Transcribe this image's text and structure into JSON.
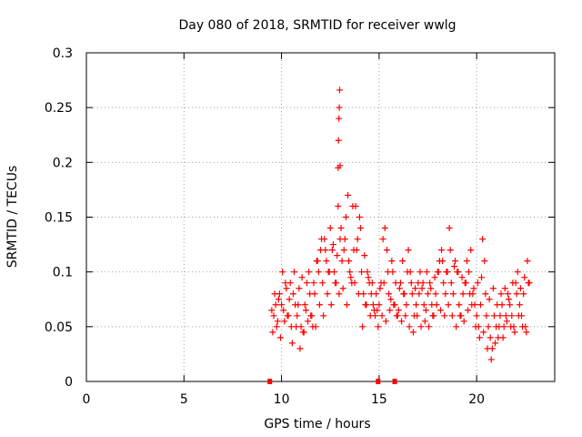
{
  "chart_data": {
    "type": "scatter",
    "title": "Day 080 of 2018, SRMTID for receiver wwlg",
    "xlabel": "GPS time / hours",
    "ylabel": "SRMTID / TECUs",
    "xlim": [
      0,
      24
    ],
    "ylim": [
      0,
      0.3
    ],
    "xticks": [
      0,
      5,
      10,
      15,
      20
    ],
    "yticks": [
      0,
      0.05,
      0.1,
      0.15,
      0.2,
      0.25,
      0.3
    ],
    "xtick_labels": [
      "0",
      "5",
      "10",
      "15",
      "20"
    ],
    "ytick_labels": [
      "0",
      "0.05",
      "0.1",
      "0.15",
      "0.2",
      "0.25",
      "0.3"
    ],
    "grid": true,
    "marker": "+",
    "color": "#ff0000",
    "series": [
      {
        "name": "SRMTID",
        "x": [
          9.5,
          9.6,
          9.7,
          9.8,
          9.9,
          10.0,
          10.1,
          10.2,
          10.3,
          10.4,
          10.5,
          10.6,
          10.7,
          10.8,
          10.9,
          11.0,
          11.1,
          11.2,
          11.3,
          11.4,
          11.5,
          11.6,
          11.7,
          11.8,
          11.9,
          12.0,
          12.1,
          12.2,
          12.3,
          12.4,
          12.5,
          12.6,
          12.7,
          12.8,
          12.9,
          13.0,
          13.1,
          13.2,
          13.3,
          13.4,
          13.5,
          13.6,
          13.7,
          13.8,
          13.9,
          14.0,
          14.1,
          14.2,
          14.3,
          14.4,
          14.5,
          14.6,
          14.7,
          14.8,
          14.9,
          15.0,
          15.1,
          15.2,
          15.3,
          15.4,
          15.5,
          15.6,
          15.7,
          15.8,
          15.9,
          16.0,
          16.1,
          16.2,
          16.3,
          16.4,
          16.5,
          16.6,
          16.7,
          16.8,
          16.9,
          17.0,
          17.1,
          17.2,
          17.3,
          17.4,
          17.5,
          17.6,
          17.7,
          17.8,
          17.9,
          18.0,
          18.1,
          18.2,
          18.3,
          18.4,
          18.5,
          18.6,
          18.7,
          18.8,
          18.9,
          19.0,
          19.1,
          19.2,
          19.3,
          19.4,
          19.5,
          19.6,
          19.7,
          19.8,
          19.9,
          20.0,
          20.1,
          20.2,
          20.3,
          20.4,
          20.5,
          20.6,
          20.7,
          20.8,
          20.9,
          21.0,
          21.1,
          21.2,
          21.3,
          21.4,
          21.5,
          21.6,
          21.7,
          21.8,
          21.9,
          22.0,
          22.1,
          22.2,
          22.3,
          22.4,
          22.5,
          22.6,
          22.7,
          9.55,
          9.75,
          9.95,
          10.15,
          10.35,
          10.55,
          10.75,
          10.95,
          11.15,
          11.35,
          11.55,
          11.75,
          11.95,
          12.15,
          12.35,
          12.55,
          12.75,
          12.95,
          13.15,
          13.35,
          13.55,
          13.75,
          13.95,
          14.15,
          14.35,
          14.55,
          14.75,
          14.95,
          15.15,
          15.35,
          15.55,
          15.75,
          15.95,
          16.15,
          16.35,
          16.55,
          16.75,
          16.95,
          17.15,
          17.35,
          17.55,
          17.75,
          17.95,
          18.15,
          18.35,
          18.55,
          18.75,
          18.95,
          19.15,
          19.35,
          19.55,
          19.75,
          19.95,
          20.15,
          20.35,
          20.55,
          20.75,
          20.95,
          21.15,
          21.35,
          21.55,
          21.75,
          21.95,
          22.15,
          22.35,
          22.55,
          9.65,
          9.85,
          10.05,
          10.25,
          10.45,
          10.65,
          10.85,
          11.05,
          11.25,
          11.45,
          11.65,
          11.85,
          12.05,
          12.25,
          12.45,
          12.65,
          12.85,
          13.05,
          13.25,
          13.45,
          13.65,
          13.85,
          14.05,
          14.25,
          14.45,
          14.65,
          14.85,
          15.05,
          15.25,
          15.45,
          15.65,
          15.85,
          16.05,
          16.25,
          16.45,
          16.65,
          16.85,
          17.05,
          17.25,
          17.45,
          17.65,
          17.85,
          18.05,
          18.25,
          18.45,
          18.65,
          18.85,
          19.05,
          19.25,
          19.45,
          19.65,
          19.85,
          20.05,
          20.25,
          20.45,
          20.65,
          20.85,
          21.05,
          21.25,
          21.45,
          21.65,
          21.85,
          22.05,
          22.25,
          22.45,
          22.65,
          12.9,
          12.92,
          12.94,
          12.96,
          12.98,
          13.0
        ],
        "y": [
          0.065,
          0.06,
          0.07,
          0.055,
          0.08,
          0.07,
          0.065,
          0.09,
          0.06,
          0.075,
          0.05,
          0.08,
          0.07,
          0.06,
          0.085,
          0.05,
          0.045,
          0.07,
          0.09,
          0.1,
          0.06,
          0.05,
          0.08,
          0.11,
          0.1,
          0.12,
          0.09,
          0.13,
          0.11,
          0.1,
          0.14,
          0.12,
          0.1,
          0.09,
          0.16,
          0.13,
          0.11,
          0.12,
          0.15,
          0.17,
          0.1,
          0.09,
          0.12,
          0.16,
          0.13,
          0.15,
          0.1,
          0.08,
          0.07,
          0.1,
          0.09,
          0.08,
          0.07,
          0.06,
          0.065,
          0.07,
          0.09,
          0.13,
          0.14,
          0.12,
          0.08,
          0.075,
          0.1,
          0.07,
          0.06,
          0.065,
          0.09,
          0.11,
          0.08,
          0.07,
          0.12,
          0.1,
          0.08,
          0.06,
          0.07,
          0.09,
          0.1,
          0.085,
          0.07,
          0.065,
          0.08,
          0.09,
          0.07,
          0.06,
          0.08,
          0.1,
          0.11,
          0.12,
          0.09,
          0.08,
          0.1,
          0.14,
          0.09,
          0.08,
          0.11,
          0.1,
          0.07,
          0.06,
          0.08,
          0.09,
          0.11,
          0.1,
          0.12,
          0.08,
          0.07,
          0.06,
          0.05,
          0.07,
          0.13,
          0.11,
          0.06,
          0.05,
          0.04,
          0.03,
          0.06,
          0.05,
          0.04,
          0.06,
          0.07,
          0.05,
          0.06,
          0.08,
          0.07,
          0.06,
          0.05,
          0.09,
          0.1,
          0.07,
          0.06,
          0.08,
          0.05,
          0.11,
          0.09,
          0.045,
          0.05,
          0.04,
          0.055,
          0.06,
          0.035,
          0.05,
          0.03,
          0.045,
          0.055,
          0.06,
          0.05,
          0.07,
          0.06,
          0.08,
          0.07,
          0.09,
          0.08,
          0.085,
          0.07,
          0.095,
          0.09,
          0.08,
          0.05,
          0.07,
          0.06,
          0.065,
          0.05,
          0.06,
          0.055,
          0.065,
          0.07,
          0.06,
          0.055,
          0.06,
          0.05,
          0.045,
          0.06,
          0.05,
          0.055,
          0.05,
          0.06,
          0.07,
          0.065,
          0.06,
          0.07,
          0.06,
          0.05,
          0.06,
          0.055,
          0.065,
          0.07,
          0.05,
          0.04,
          0.045,
          0.03,
          0.02,
          0.035,
          0.05,
          0.04,
          0.055,
          0.05,
          0.045,
          0.06,
          0.05,
          0.045,
          0.08,
          0.075,
          0.1,
          0.085,
          0.09,
          0.1,
          0.07,
          0.095,
          0.065,
          0.08,
          0.09,
          0.11,
          0.13,
          0.12,
          0.1,
          0.125,
          0.115,
          0.14,
          0.13,
          0.11,
          0.16,
          0.12,
          0.14,
          0.115,
          0.095,
          0.09,
          0.08,
          0.085,
          0.09,
          0.1,
          0.11,
          0.09,
          0.085,
          0.08,
          0.1,
          0.09,
          0.085,
          0.08,
          0.09,
          0.1,
          0.085,
          0.095,
          0.1,
          0.11,
          0.1,
          0.12,
          0.105,
          0.1,
          0.095,
          0.09,
          0.08,
          0.085,
          0.09,
          0.095,
          0.08,
          0.075,
          0.085,
          0.07,
          0.08,
          0.085,
          0.075,
          0.09,
          0.08,
          0.085,
          0.095,
          0.09,
          0.195,
          0.22,
          0.24,
          0.25,
          0.266,
          0.197
        ]
      }
    ],
    "axis_markers_x": [
      9.4,
      14.95,
      15.8
    ]
  }
}
